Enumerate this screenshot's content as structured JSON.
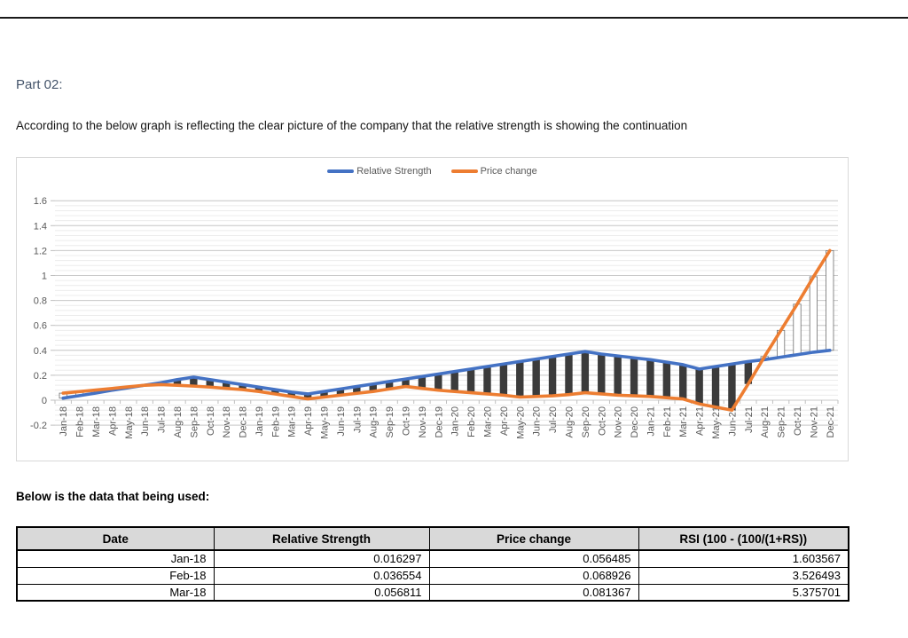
{
  "page": {
    "part_label": "Part 02:",
    "intro_text": "According to the below graph is reflecting the clear picture of the company that the relative strength is showing the continuation",
    "table_caption": "Below is the data that being used:"
  },
  "chart_data": {
    "type": "line",
    "title": "",
    "xlabel": "",
    "ylabel": "",
    "ylim": [
      -0.2,
      1.6
    ],
    "major_unit": 0.2,
    "minor_unit": 0.04,
    "grid": "horizontal major + minor",
    "legend_position": "top-center",
    "up_down_bars": true,
    "y_ticks": [
      "1.6",
      "1.4",
      "1.2",
      "1",
      "0.8",
      "0.6",
      "0.4",
      "0.2",
      "0",
      "-0.2"
    ],
    "categories": [
      "Jan-18",
      "Feb-18",
      "Mar-18",
      "Apr-18",
      "May-18",
      "Jun-18",
      "Jul-18",
      "Aug-18",
      "Sep-18",
      "Oct-18",
      "Nov-18",
      "Dec-18",
      "Jan-19",
      "Feb-19",
      "Mar-19",
      "Apr-19",
      "May-19",
      "Jun-19",
      "Jul-19",
      "Aug-19",
      "Sep-19",
      "Oct-19",
      "Nov-19",
      "Dec-19",
      "Jan-20",
      "Feb-20",
      "Mar-20",
      "Apr-20",
      "May-20",
      "Jun-20",
      "Jul-20",
      "Aug-20",
      "Sep-20",
      "Oct-20",
      "Nov-20",
      "Dec-20",
      "Jan-21",
      "Feb-21",
      "Mar-21",
      "Apr-21",
      "May-21",
      "Jun-21",
      "Jul-21",
      "Aug-21",
      "Sep-21",
      "Oct-21",
      "Nov-21",
      "Dec-21"
    ],
    "legend": [
      {
        "name": "Relative Strength",
        "color": "#4472C4"
      },
      {
        "name": "Price change",
        "color": "#ED7D31"
      }
    ],
    "series": [
      {
        "name": "Relative Strength",
        "color": "#4472C4",
        "values": [
          0.016297,
          0.036554,
          0.056811,
          0.08,
          0.1,
          0.12,
          0.14,
          0.165,
          0.185,
          0.165,
          0.145,
          0.125,
          0.105,
          0.085,
          0.065,
          0.05,
          0.07,
          0.09,
          0.11,
          0.13,
          0.15,
          0.17,
          0.19,
          0.21,
          0.23,
          0.25,
          0.27,
          0.29,
          0.31,
          0.33,
          0.35,
          0.37,
          0.39,
          0.37,
          0.355,
          0.34,
          0.325,
          0.305,
          0.285,
          0.25,
          0.27,
          0.29,
          0.31,
          0.325,
          0.345,
          0.365,
          0.385,
          0.4
        ]
      },
      {
        "name": "Price change",
        "color": "#ED7D31",
        "values": [
          0.056485,
          0.068926,
          0.081367,
          0.094,
          0.107,
          0.12,
          0.125,
          0.12,
          0.113,
          0.105,
          0.095,
          0.085,
          0.07,
          0.05,
          0.03,
          0.01,
          0.025,
          0.04,
          0.055,
          0.07,
          0.09,
          0.11,
          0.095,
          0.08,
          0.07,
          0.06,
          0.05,
          0.04,
          0.025,
          0.03,
          0.035,
          0.045,
          0.06,
          0.05,
          0.04,
          0.035,
          0.03,
          0.02,
          0.01,
          -0.03,
          -0.055,
          -0.08,
          0.13,
          0.35,
          0.56,
          0.77,
          0.99,
          1.2
        ]
      }
    ],
    "styles": {
      "major_grid_color": "#c9c9c9",
      "minor_grid_color": "#ececec",
      "tick_color": "#bfbfbf",
      "axis_label_color": "#595959",
      "down_bar_color": "#3b3b3b",
      "up_bar_fill": "#ffffff",
      "up_bar_stroke": "#6e6e6e"
    }
  },
  "table": {
    "headers": [
      "Date",
      "Relative Strength",
      "Price change",
      "RSI (100 - (100/(1+RS))"
    ],
    "rows": [
      [
        "Jan-18",
        "0.016297",
        "0.056485",
        "1.603567"
      ],
      [
        "Feb-18",
        "0.036554",
        "0.068926",
        "3.526493"
      ],
      [
        "Mar-18",
        "0.056811",
        "0.081367",
        "5.375701"
      ]
    ]
  }
}
